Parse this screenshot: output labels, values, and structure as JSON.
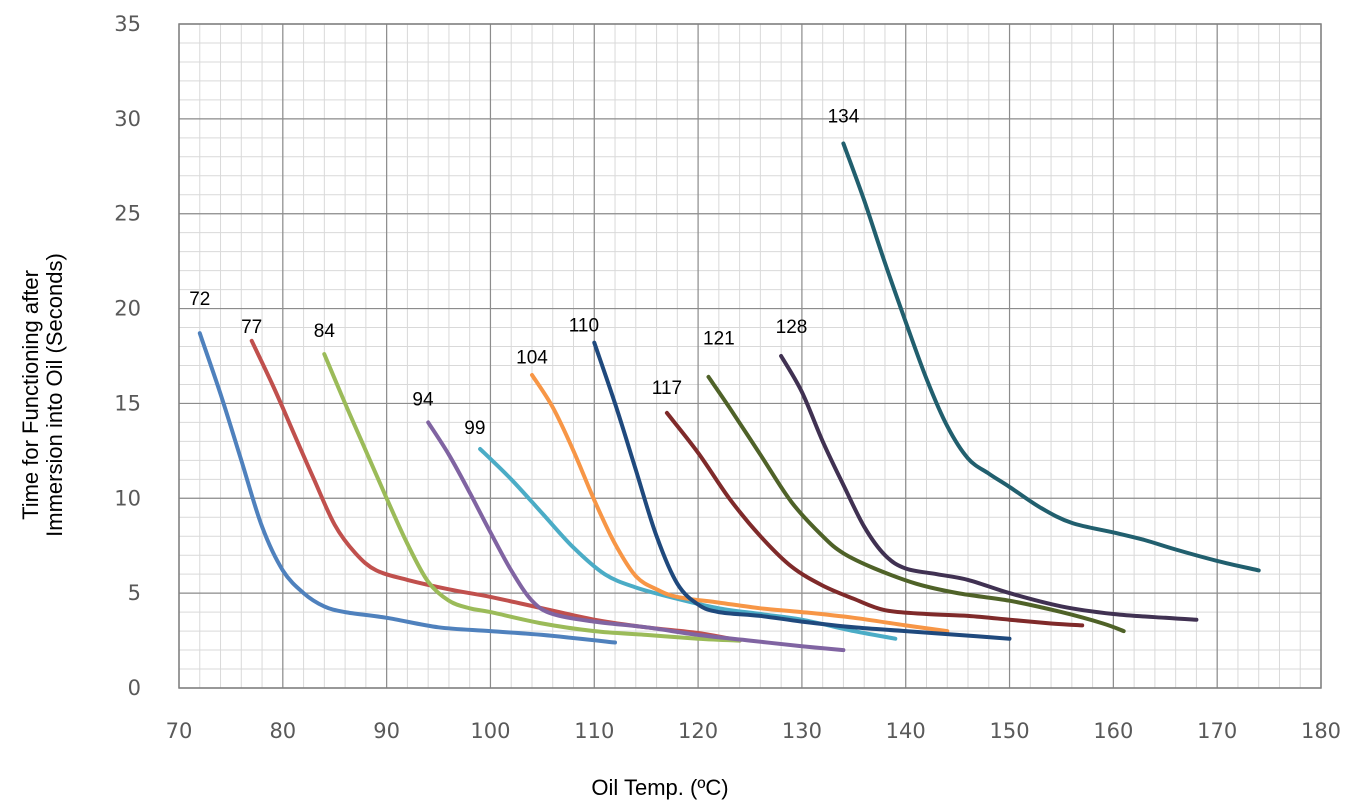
{
  "chart_data": {
    "type": "line",
    "title": "",
    "xlabel": "Oil Temp. (ºC)",
    "ylabel_lines": [
      "Time for Functioning after",
      "Immersion into Oil (Seconds)"
    ],
    "xlim": [
      70,
      180
    ],
    "ylim": [
      0,
      35
    ],
    "x_major_step": 10,
    "y_major_step": 5,
    "x_minor_step": 2,
    "y_minor_step": 1,
    "x_ticks": [
      "70",
      "80",
      "90",
      "100",
      "110",
      "120",
      "130",
      "140",
      "150",
      "160",
      "170",
      "180"
    ],
    "y_ticks": [
      "0",
      "5",
      "10",
      "15",
      "20",
      "25",
      "30",
      "35"
    ],
    "grid": true,
    "legend": "none",
    "series": [
      {
        "name": "72",
        "color": "#4f81bd",
        "points": [
          [
            72,
            18.7
          ],
          [
            74,
            15.5
          ],
          [
            76,
            12
          ],
          [
            78,
            8.5
          ],
          [
            80,
            6.2
          ],
          [
            82,
            5
          ],
          [
            84,
            4.3
          ],
          [
            86,
            4
          ],
          [
            90,
            3.7
          ],
          [
            95,
            3.2
          ],
          [
            100,
            3
          ],
          [
            105,
            2.8
          ],
          [
            112,
            2.4
          ]
        ]
      },
      {
        "name": "77",
        "color": "#c0504d",
        "points": [
          [
            77,
            18.3
          ],
          [
            79,
            16
          ],
          [
            81,
            13.5
          ],
          [
            83,
            11
          ],
          [
            85,
            8.6
          ],
          [
            87,
            7.1
          ],
          [
            89,
            6.2
          ],
          [
            92,
            5.7
          ],
          [
            96,
            5.2
          ],
          [
            100,
            4.8
          ],
          [
            105,
            4.2
          ],
          [
            110,
            3.6
          ],
          [
            115,
            3.2
          ],
          [
            120,
            2.9
          ],
          [
            124,
            2.5
          ]
        ]
      },
      {
        "name": "84",
        "color": "#9bbb59",
        "points": [
          [
            84,
            17.6
          ],
          [
            86,
            15
          ],
          [
            88,
            12.5
          ],
          [
            90,
            10
          ],
          [
            92,
            7.6
          ],
          [
            94,
            5.6
          ],
          [
            96,
            4.6
          ],
          [
            98,
            4.2
          ],
          [
            100,
            4
          ],
          [
            105,
            3.4
          ],
          [
            110,
            3
          ],
          [
            115,
            2.8
          ],
          [
            120,
            2.6
          ],
          [
            124,
            2.5
          ]
        ]
      },
      {
        "name": "94",
        "color": "#8064a2",
        "points": [
          [
            94,
            14
          ],
          [
            96,
            12.3
          ],
          [
            98,
            10.3
          ],
          [
            100,
            8.2
          ],
          [
            102,
            6.2
          ],
          [
            104,
            4.6
          ],
          [
            106,
            3.9
          ],
          [
            110,
            3.5
          ],
          [
            115,
            3.2
          ],
          [
            120,
            2.8
          ],
          [
            125,
            2.5
          ],
          [
            130,
            2.2
          ],
          [
            134,
            2
          ]
        ]
      },
      {
        "name": "99",
        "color": "#4bacc6",
        "points": [
          [
            99,
            12.6
          ],
          [
            102,
            11
          ],
          [
            105,
            9.2
          ],
          [
            108,
            7.4
          ],
          [
            111,
            6
          ],
          [
            114,
            5.3
          ],
          [
            118,
            4.7
          ],
          [
            122,
            4.2
          ],
          [
            126,
            3.9
          ],
          [
            130,
            3.6
          ],
          [
            135,
            3
          ],
          [
            139,
            2.6
          ]
        ]
      },
      {
        "name": "104",
        "color": "#f79646",
        "points": [
          [
            104,
            16.5
          ],
          [
            106,
            14.8
          ],
          [
            108,
            12.5
          ],
          [
            110,
            9.9
          ],
          [
            112,
            7.6
          ],
          [
            114,
            5.9
          ],
          [
            116,
            5.2
          ],
          [
            118,
            4.8
          ],
          [
            122,
            4.5
          ],
          [
            126,
            4.2
          ],
          [
            130,
            4
          ],
          [
            135,
            3.7
          ],
          [
            140,
            3.3
          ],
          [
            144,
            3
          ]
        ]
      },
      {
        "name": "110",
        "color": "#1f497d",
        "points": [
          [
            110,
            18.2
          ],
          [
            112,
            15
          ],
          [
            114,
            11.5
          ],
          [
            116,
            8
          ],
          [
            118,
            5.5
          ],
          [
            120,
            4.4
          ],
          [
            122,
            4
          ],
          [
            126,
            3.8
          ],
          [
            130,
            3.5
          ],
          [
            135,
            3.2
          ],
          [
            140,
            3
          ],
          [
            145,
            2.8
          ],
          [
            150,
            2.6
          ]
        ]
      },
      {
        "name": "117",
        "color": "#7f2a2a",
        "points": [
          [
            117,
            14.5
          ],
          [
            120,
            12.4
          ],
          [
            123,
            10
          ],
          [
            126,
            8
          ],
          [
            129,
            6.4
          ],
          [
            132,
            5.4
          ],
          [
            135,
            4.7
          ],
          [
            138,
            4.1
          ],
          [
            142,
            3.9
          ],
          [
            146,
            3.8
          ],
          [
            150,
            3.6
          ],
          [
            154,
            3.4
          ],
          [
            157,
            3.3
          ]
        ]
      },
      {
        "name": "121",
        "color": "#4f6228",
        "points": [
          [
            121,
            16.4
          ],
          [
            123,
            14.8
          ],
          [
            126,
            12.3
          ],
          [
            129,
            9.8
          ],
          [
            132,
            8
          ],
          [
            134,
            7.1
          ],
          [
            137,
            6.3
          ],
          [
            141,
            5.5
          ],
          [
            145,
            5
          ],
          [
            150,
            4.6
          ],
          [
            155,
            4
          ],
          [
            159,
            3.4
          ],
          [
            161,
            3
          ]
        ]
      },
      {
        "name": "128",
        "color": "#403152",
        "points": [
          [
            128,
            17.5
          ],
          [
            130,
            15.6
          ],
          [
            132,
            13
          ],
          [
            134,
            10.7
          ],
          [
            136,
            8.5
          ],
          [
            138,
            7
          ],
          [
            140,
            6.3
          ],
          [
            143,
            6
          ],
          [
            146,
            5.7
          ],
          [
            150,
            5
          ],
          [
            155,
            4.3
          ],
          [
            160,
            3.9
          ],
          [
            165,
            3.7
          ],
          [
            168,
            3.6
          ]
        ]
      },
      {
        "name": "134",
        "color": "#215f6e",
        "points": [
          [
            134,
            28.7
          ],
          [
            136,
            25.7
          ],
          [
            138,
            22.4
          ],
          [
            140,
            19.3
          ],
          [
            142,
            16.3
          ],
          [
            144,
            13.8
          ],
          [
            146,
            12.1
          ],
          [
            148,
            11.3
          ],
          [
            150,
            10.6
          ],
          [
            153,
            9.5
          ],
          [
            156,
            8.7
          ],
          [
            160,
            8.2
          ],
          [
            163,
            7.8
          ],
          [
            166,
            7.3
          ],
          [
            170,
            6.7
          ],
          [
            174,
            6.2
          ]
        ]
      }
    ],
    "series_labels": [
      {
        "name": "72",
        "x": 72,
        "y": 20.2
      },
      {
        "name": "77",
        "x": 77,
        "y": 18.7
      },
      {
        "name": "84",
        "x": 84,
        "y": 18.5
      },
      {
        "name": "94",
        "x": 93.5,
        "y": 14.9
      },
      {
        "name": "99",
        "x": 98.5,
        "y": 13.4
      },
      {
        "name": "104",
        "x": 104,
        "y": 17.1
      },
      {
        "name": "110",
        "x": 109,
        "y": 18.8
      },
      {
        "name": "117",
        "x": 117,
        "y": 15.5
      },
      {
        "name": "121",
        "x": 122,
        "y": 18.1
      },
      {
        "name": "128",
        "x": 129,
        "y": 18.7
      },
      {
        "name": "134",
        "x": 134,
        "y": 29.8
      }
    ]
  }
}
